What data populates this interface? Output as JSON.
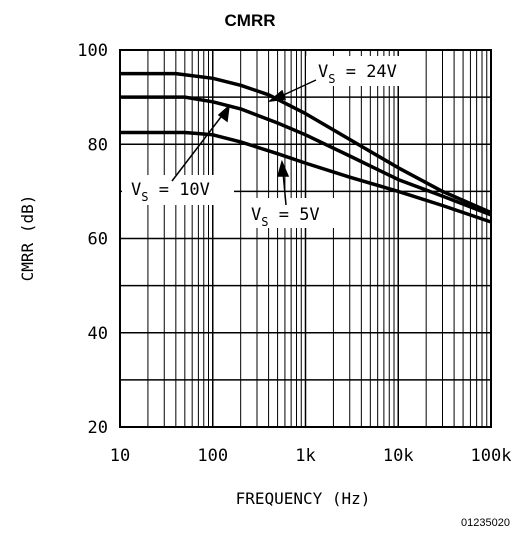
{
  "chart_data": {
    "type": "line",
    "title": "CMRR",
    "xlabel": "FREQUENCY (Hz)",
    "ylabel": "CMRR (dB)",
    "xscale": "log",
    "xlim": [
      10,
      100000
    ],
    "ylim": [
      20,
      100
    ],
    "xticks": [
      "10",
      "100",
      "1k",
      "10k",
      "100k"
    ],
    "yticks": [
      "20",
      "40",
      "60",
      "80",
      "100"
    ],
    "grid": true,
    "series": [
      {
        "name": "VS = 24V",
        "label_main": "V",
        "label_sub": "S",
        "label_rest": " = 24V",
        "x": [
          10,
          40,
          100,
          200,
          400,
          1000,
          3000,
          10000,
          30000,
          100000
        ],
        "y": [
          95,
          95,
          94,
          92.5,
          90.5,
          86.5,
          81,
          75,
          70,
          65.5
        ]
      },
      {
        "name": "VS = 10V",
        "label_main": "V",
        "label_sub": "S",
        "label_rest": " = 10V",
        "x": [
          10,
          50,
          100,
          200,
          500,
          1000,
          3000,
          10000,
          30000,
          100000
        ],
        "y": [
          90,
          90,
          89,
          87.5,
          84.5,
          82,
          77.5,
          72.5,
          69,
          65
        ]
      },
      {
        "name": "VS = 5V",
        "label_main": "V",
        "label_sub": "S",
        "label_rest": " = 5V",
        "x": [
          10,
          50,
          100,
          200,
          500,
          1000,
          3000,
          10000,
          30000,
          100000
        ],
        "y": [
          82.5,
          82.5,
          82,
          80.5,
          78,
          76,
          73,
          70,
          67,
          63.5
        ]
      }
    ],
    "figure_id": "01235020"
  }
}
